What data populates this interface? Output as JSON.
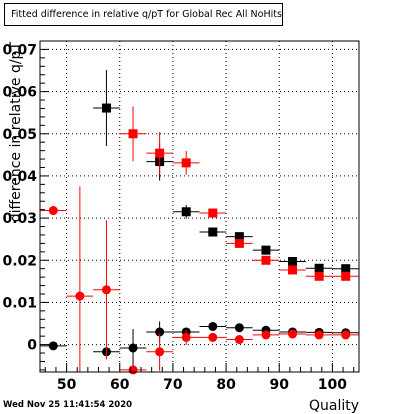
{
  "chart_data": {
    "type": "scatter",
    "title": "Fitted difference in relative q/pT for Global Rec All NoHits",
    "xlabel": "Quality",
    "ylabel": "difference in relative q/pT",
    "xlim": [
      45,
      105
    ],
    "ylim": [
      -0.0065,
      0.072
    ],
    "xticks": [
      50,
      60,
      70,
      80,
      90,
      100
    ],
    "yticks": [
      0,
      0.01,
      0.02,
      0.03,
      0.04,
      0.05,
      0.06,
      0.07
    ],
    "grid": true,
    "series": [
      {
        "marker": "square",
        "color": "#000000",
        "points": [
          {
            "x": 57.5,
            "y": 0.0561,
            "yerr": 0.009,
            "xerr": 2.5
          },
          {
            "x": 67.5,
            "y": 0.0434,
            "yerr": 0.0045,
            "xerr": 2.5
          },
          {
            "x": 72.5,
            "y": 0.0315,
            "yerr": 0.0016,
            "xerr": 2.5
          },
          {
            "x": 77.5,
            "y": 0.0267,
            "yerr": 0.0008,
            "xerr": 2.5
          },
          {
            "x": 82.5,
            "y": 0.0256,
            "yerr": 0.0006,
            "xerr": 2.5
          },
          {
            "x": 87.5,
            "y": 0.0224,
            "yerr": 0.0005,
            "xerr": 2.5
          },
          {
            "x": 92.5,
            "y": 0.0197,
            "yerr": 0.0004,
            "xerr": 2.5
          },
          {
            "x": 97.5,
            "y": 0.0181,
            "yerr": 0.0003,
            "xerr": 2.5
          },
          {
            "x": 102.5,
            "y": 0.018,
            "yerr": 0.0003,
            "xerr": 2.5
          }
        ]
      },
      {
        "marker": "square",
        "color": "#ff0000",
        "points": [
          {
            "x": 62.5,
            "y": 0.05,
            "yerr": 0.0065,
            "xerr": 2.5
          },
          {
            "x": 67.5,
            "y": 0.0454,
            "yerr": 0.005,
            "xerr": 2.5
          },
          {
            "x": 72.5,
            "y": 0.0431,
            "yerr": 0.0028,
            "xerr": 2.5
          },
          {
            "x": 77.5,
            "y": 0.0312,
            "yerr": 0.001,
            "xerr": 2.5
          },
          {
            "x": 82.5,
            "y": 0.024,
            "yerr": 0.0007,
            "xerr": 2.5
          },
          {
            "x": 87.5,
            "y": 0.02,
            "yerr": 0.0005,
            "xerr": 2.5
          },
          {
            "x": 92.5,
            "y": 0.0177,
            "yerr": 0.0004,
            "xerr": 2.5
          },
          {
            "x": 97.5,
            "y": 0.0162,
            "yerr": 0.0003,
            "xerr": 2.5
          },
          {
            "x": 102.5,
            "y": 0.0162,
            "yerr": 0.0003,
            "xerr": 2.5
          }
        ]
      },
      {
        "marker": "circle",
        "color": "#000000",
        "points": [
          {
            "x": 47.5,
            "y": -0.0003,
            "yerr": 0.0,
            "xerr": 2.5
          },
          {
            "x": 57.5,
            "y": -0.0017,
            "yerr": 0.0,
            "xerr": 2.5
          },
          {
            "x": 62.5,
            "y": -0.0008,
            "yerr": 0.0045,
            "xerr": 2.5
          },
          {
            "x": 67.5,
            "y": 0.003,
            "yerr": 0.0025,
            "xerr": 2.5
          },
          {
            "x": 72.5,
            "y": 0.003,
            "yerr": 0.001,
            "xerr": 2.5
          },
          {
            "x": 77.5,
            "y": 0.0043,
            "yerr": 0.0006,
            "xerr": 2.5
          },
          {
            "x": 82.5,
            "y": 0.004,
            "yerr": 0.0004,
            "xerr": 2.5
          },
          {
            "x": 87.5,
            "y": 0.0034,
            "yerr": 0.0003,
            "xerr": 2.5
          },
          {
            "x": 92.5,
            "y": 0.003,
            "yerr": 0.0003,
            "xerr": 2.5
          },
          {
            "x": 97.5,
            "y": 0.0029,
            "yerr": 0.0002,
            "xerr": 2.5
          },
          {
            "x": 102.5,
            "y": 0.0028,
            "yerr": 0.0002,
            "xerr": 2.5
          }
        ]
      },
      {
        "marker": "circle",
        "color": "#ff0000",
        "points": [
          {
            "x": 47.5,
            "y": 0.0318,
            "yerr": 0.0,
            "xerr": 2.5
          },
          {
            "x": 52.5,
            "y": 0.0115,
            "yerr": 0.026,
            "xerr": 2.5
          },
          {
            "x": 57.5,
            "y": 0.013,
            "yerr": 0.0165,
            "xerr": 2.5
          },
          {
            "x": 62.5,
            "y": -0.006,
            "yerr": 0.0,
            "xerr": 2.5
          },
          {
            "x": 67.5,
            "y": -0.0017,
            "yerr": 0.0045,
            "xerr": 2.5
          },
          {
            "x": 72.5,
            "y": 0.0017,
            "yerr": 0.0018,
            "xerr": 2.5
          },
          {
            "x": 77.5,
            "y": 0.0017,
            "yerr": 0.0008,
            "xerr": 2.5
          },
          {
            "x": 82.5,
            "y": 0.0012,
            "yerr": 0.0005,
            "xerr": 2.5
          },
          {
            "x": 87.5,
            "y": 0.0023,
            "yerr": 0.0004,
            "xerr": 2.5
          },
          {
            "x": 92.5,
            "y": 0.0025,
            "yerr": 0.0003,
            "xerr": 2.5
          },
          {
            "x": 97.5,
            "y": 0.0023,
            "yerr": 0.0003,
            "xerr": 2.5
          },
          {
            "x": 102.5,
            "y": 0.0023,
            "yerr": 0.0002,
            "xerr": 2.5
          }
        ]
      }
    ]
  },
  "footer": {
    "timestamp": "Wed Nov 25 11:41:54 2020"
  }
}
